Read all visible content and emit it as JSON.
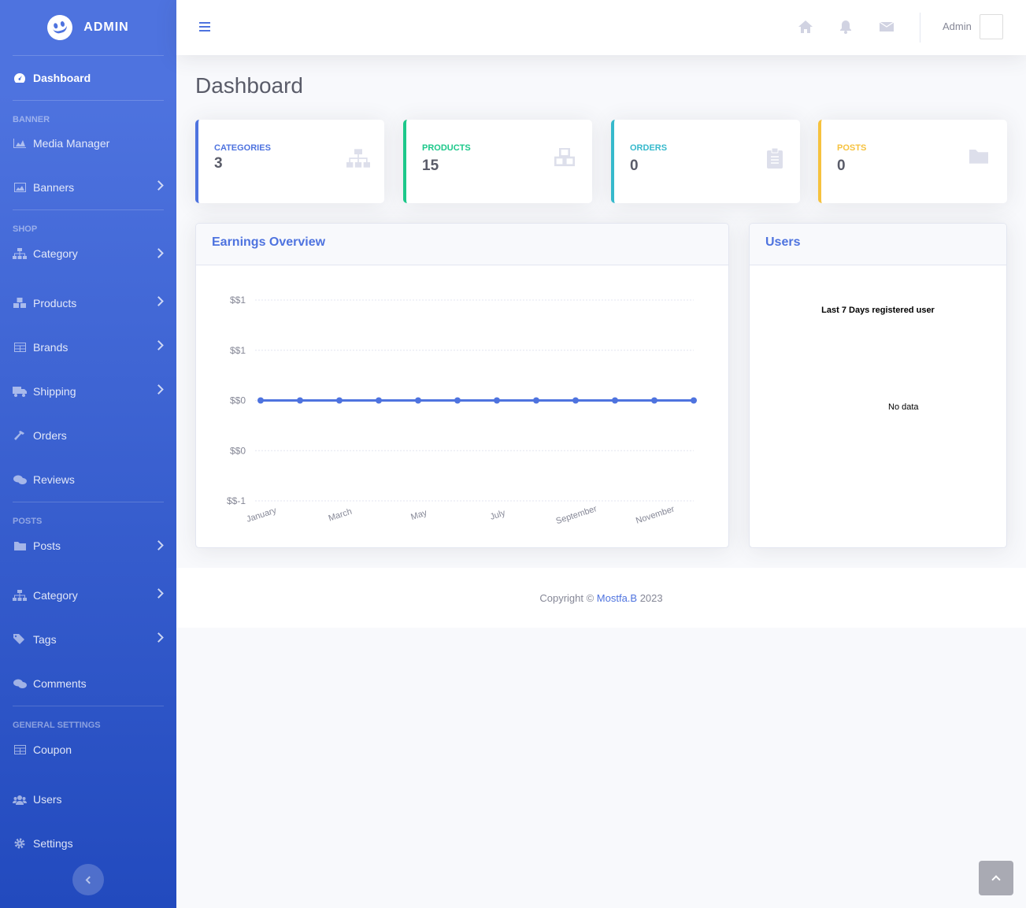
{
  "brand": {
    "name": "ADMIN"
  },
  "sidebar": {
    "dashboard": "Dashboard",
    "headings": {
      "banner": "BANNER",
      "shop": "SHOP",
      "posts": "POSTS",
      "general": "GENERAL SETTINGS"
    },
    "items": {
      "media_manager": "Media Manager",
      "banners": "Banners",
      "shop_category": "Category",
      "products": "Products",
      "brands": "Brands",
      "shipping": "Shipping",
      "orders": "Orders",
      "reviews": "Reviews",
      "posts": "Posts",
      "post_category": "Category",
      "tags": "Tags",
      "comments": "Comments",
      "coupon": "Coupon",
      "users": "Users",
      "settings": "Settings"
    }
  },
  "topbar": {
    "user_name": "Admin"
  },
  "page": {
    "title": "Dashboard"
  },
  "stats": [
    {
      "label": "CATEGORIES",
      "value": "3",
      "color": "#4e73df"
    },
    {
      "label": "PRODUCTS",
      "value": "15",
      "color": "#1cc88a"
    },
    {
      "label": "ORDERS",
      "value": "0",
      "color": "#36b9cc"
    },
    {
      "label": "POSTS",
      "value": "0",
      "color": "#f6c23e"
    }
  ],
  "earnings": {
    "title": "Earnings Overview"
  },
  "users_card": {
    "title": "Users",
    "subtitle": "Last 7 Days registered user",
    "no_data": "No data"
  },
  "chart_data": {
    "type": "line",
    "title": "",
    "xlabel": "",
    "ylabel": "",
    "x_tick_labels": [
      "January",
      "March",
      "May",
      "July",
      "September",
      "November"
    ],
    "x": [
      "January",
      "February",
      "March",
      "April",
      "May",
      "June",
      "July",
      "August",
      "September",
      "October",
      "November",
      "December"
    ],
    "series": [
      {
        "values": [
          0,
          0,
          0,
          0,
          0,
          0,
          0,
          0,
          0,
          0,
          0,
          0
        ],
        "color": "#4e73df"
      }
    ],
    "y_tick_labels": [
      "$$1",
      "$$1",
      "$$0",
      "$$0",
      "$$-1"
    ],
    "ylim": [
      -1,
      1
    ],
    "grid": true
  },
  "footer": {
    "prefix": "Copyright © ",
    "link": "Mostfa.B",
    "suffix": " 2023"
  }
}
